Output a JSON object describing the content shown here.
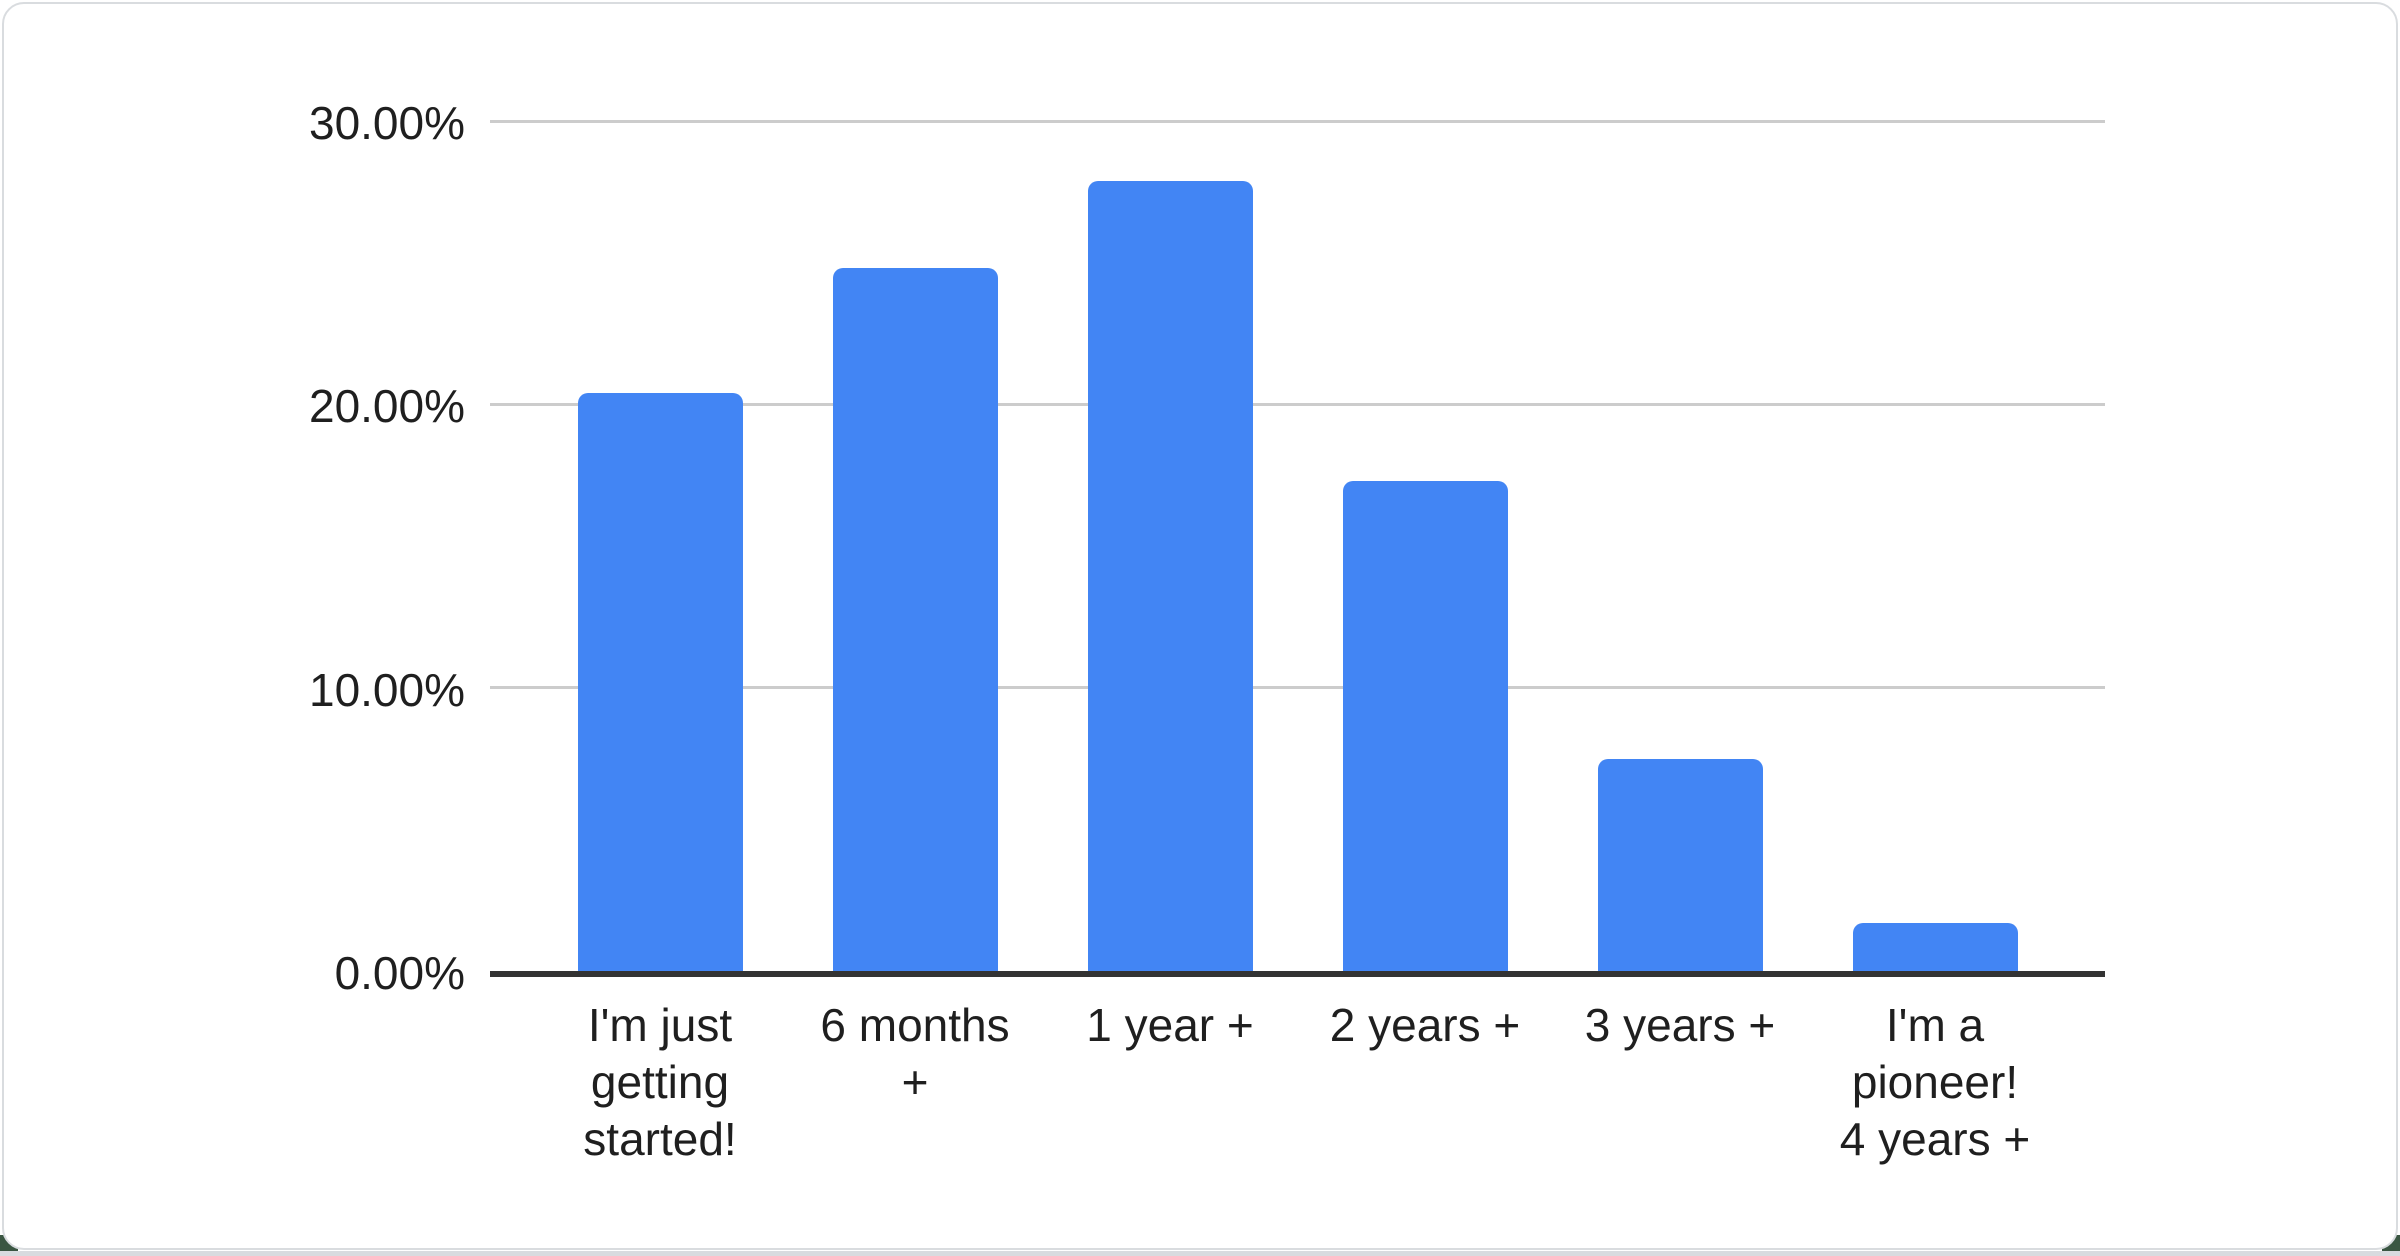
{
  "chart_data": {
    "type": "bar",
    "categories": [
      "I'm just getting started!",
      "6 months +",
      "1 year +",
      "2 years +",
      "3 years +",
      "I'm a pioneer! 4 years +"
    ],
    "category_lines": [
      [
        "I'm just",
        "getting",
        "started!"
      ],
      [
        "6 months",
        "+"
      ],
      [
        "1 year +"
      ],
      [
        "2 years +"
      ],
      [
        "3 years +"
      ],
      [
        "I'm a",
        "pioneer!",
        "4 years +"
      ]
    ],
    "values": [
      20.4,
      24.8,
      27.9,
      17.3,
      7.5,
      1.7
    ],
    "unit": "%",
    "ylim": [
      0,
      30
    ],
    "y_ticks": [
      {
        "label": "30.00%",
        "value": 30
      },
      {
        "label": "20.00%",
        "value": 20
      },
      {
        "label": "10.00%",
        "value": 10
      },
      {
        "label": "0.00%",
        "value": 0
      }
    ],
    "grid": true,
    "legend": "none",
    "colors": {
      "bar": "#4285f4",
      "gridline": "#cccccc",
      "baseline": "#333333",
      "axis_text": "#1f1f1f",
      "card_background": "#ffffff",
      "card_border": "#d9dcdf",
      "footer_strip": "#d8dbdf",
      "corner_accent": "#3a5642"
    }
  }
}
